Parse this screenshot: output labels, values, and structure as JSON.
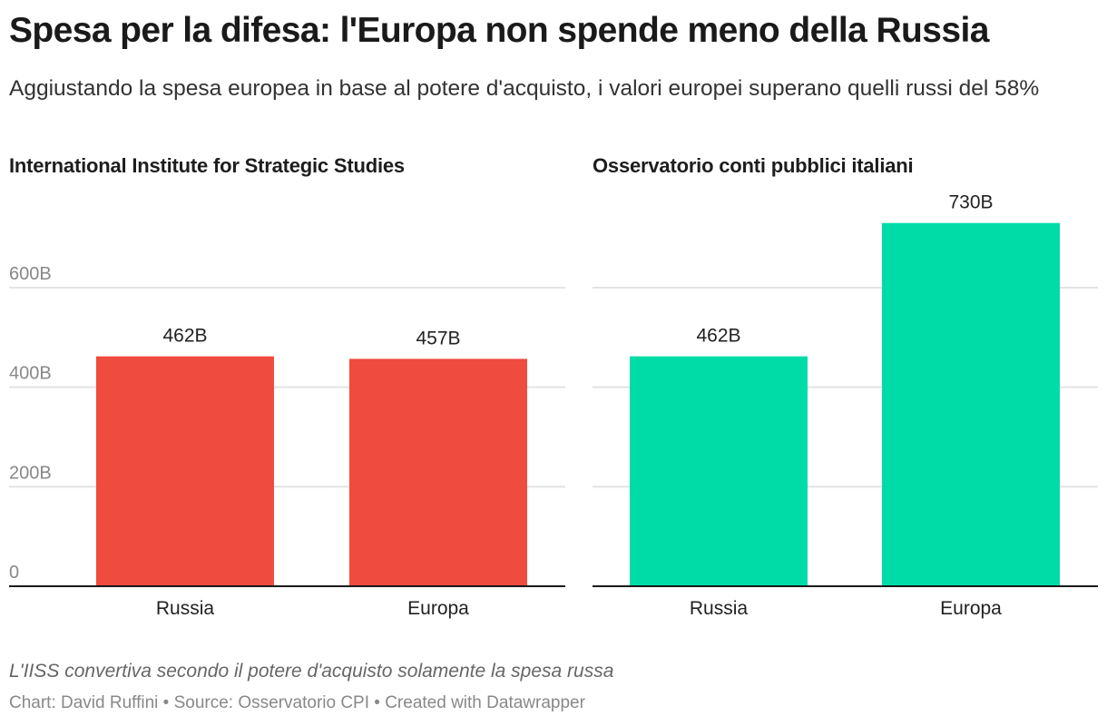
{
  "title": "Spesa per la difesa: l'Europa non spende meno della Russia",
  "subtitle": "Aggiustando la spesa europea in base al potere d'acquisto, i valori europei superano quelli russi del 58%",
  "note": "L'IISS convertiva secondo il potere d'acquisto solamente la spesa russa",
  "byline": "Chart: David Ruffini • Source: Osservatorio CPI • Created with Datawrapper",
  "chart_data": [
    {
      "type": "bar",
      "title": "International Institute for Strategic Studies",
      "categories": [
        "Russia",
        "Europa"
      ],
      "values": [
        462,
        457
      ],
      "value_labels": [
        "462B",
        "457B"
      ],
      "color": "#ef4b3f",
      "xlabel": "",
      "ylabel": "",
      "ylim": [
        0,
        730
      ],
      "yticks": [
        0,
        200,
        400,
        600
      ],
      "ytick_labels": [
        "0",
        "200B",
        "400B",
        "600B"
      ],
      "grid": true
    },
    {
      "type": "bar",
      "title": "Osservatorio conti pubblici italiani",
      "categories": [
        "Russia",
        "Europa"
      ],
      "values": [
        462,
        730
      ],
      "value_labels": [
        "462B",
        "730B"
      ],
      "color": "#00dca8",
      "xlabel": "",
      "ylabel": "",
      "ylim": [
        0,
        730
      ],
      "yticks": [
        0,
        200,
        400,
        600
      ],
      "ytick_labels": [
        "",
        "",
        "",
        ""
      ],
      "grid": true
    }
  ]
}
